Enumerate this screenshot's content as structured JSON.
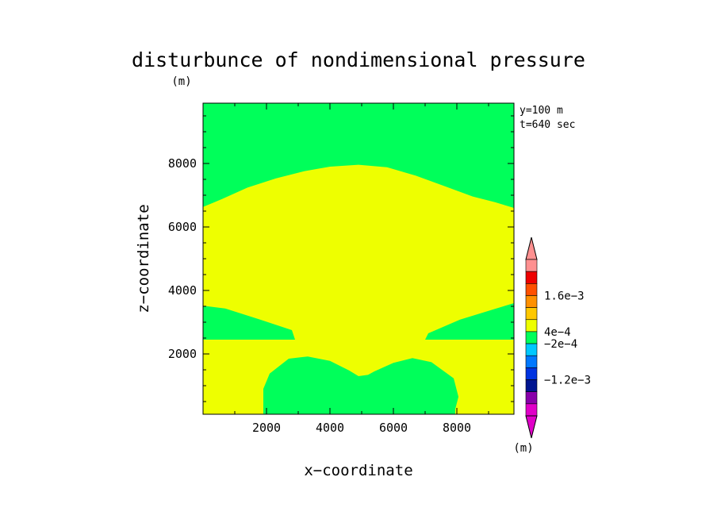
{
  "chart_data": {
    "type": "heatmap",
    "title": "disturbunce of nondimensional pressure",
    "unit_top": "(m)",
    "unit_right": "(m)",
    "xlabel": "x−coordinate",
    "ylabel": "z−coordinate",
    "annotations": [
      "y=100 m",
      "t=640 sec"
    ],
    "xlim": [
      0,
      9800
    ],
    "ylim": [
      100,
      9900
    ],
    "x_ticks": [
      2000,
      4000,
      6000,
      8000
    ],
    "y_ticks": [
      2000,
      4000,
      6000,
      8000
    ],
    "x_ticklabels": [
      "2000",
      "4000",
      "6000",
      "8000"
    ],
    "y_ticklabels": [
      "2000",
      "4000",
      "6000",
      "8000"
    ],
    "background_color": "#00ff5a",
    "regions": [
      {
        "name": "yellow-main",
        "color": "#eeff00",
        "points": [
          [
            0,
            6630
          ],
          [
            600,
            6880
          ],
          [
            1400,
            7240
          ],
          [
            2300,
            7530
          ],
          [
            3200,
            7760
          ],
          [
            4000,
            7900
          ],
          [
            4900,
            7960
          ],
          [
            5800,
            7880
          ],
          [
            6700,
            7620
          ],
          [
            7600,
            7290
          ],
          [
            8500,
            6960
          ],
          [
            9200,
            6780
          ],
          [
            9800,
            6600
          ],
          [
            9800,
            3600
          ],
          [
            9200,
            3420
          ],
          [
            8100,
            3080
          ],
          [
            7100,
            2650
          ],
          [
            7000,
            2450
          ],
          [
            9800,
            2450
          ],
          [
            9800,
            100
          ],
          [
            7950,
            100
          ],
          [
            7950,
            260
          ],
          [
            8050,
            650
          ],
          [
            7900,
            1230
          ],
          [
            7200,
            1740
          ],
          [
            6600,
            1870
          ],
          [
            6000,
            1720
          ],
          [
            5400,
            1450
          ],
          [
            5200,
            1340
          ],
          [
            4900,
            1300
          ],
          [
            4600,
            1480
          ],
          [
            4000,
            1780
          ],
          [
            3300,
            1920
          ],
          [
            2700,
            1850
          ],
          [
            2100,
            1380
          ],
          [
            1900,
            900
          ],
          [
            1900,
            100
          ],
          [
            0,
            100
          ],
          [
            0,
            2450
          ],
          [
            2900,
            2450
          ],
          [
            2800,
            2750
          ],
          [
            1800,
            3080
          ],
          [
            700,
            3430
          ],
          [
            0,
            3520
          ]
        ]
      }
    ],
    "colorbar": {
      "colors": [
        "#e000c8",
        "#8800aa",
        "#001490",
        "#0033e0",
        "#0078ff",
        "#00c8ff",
        "#00ff5a",
        "#eeff00",
        "#ffc800",
        "#ff9000",
        "#ff5000",
        "#ee0000",
        "#ff9090"
      ],
      "labels": [
        "1.6e−3",
        "4e−4",
        "−2e−4",
        "−1.2e−3"
      ],
      "extend": "both"
    }
  }
}
